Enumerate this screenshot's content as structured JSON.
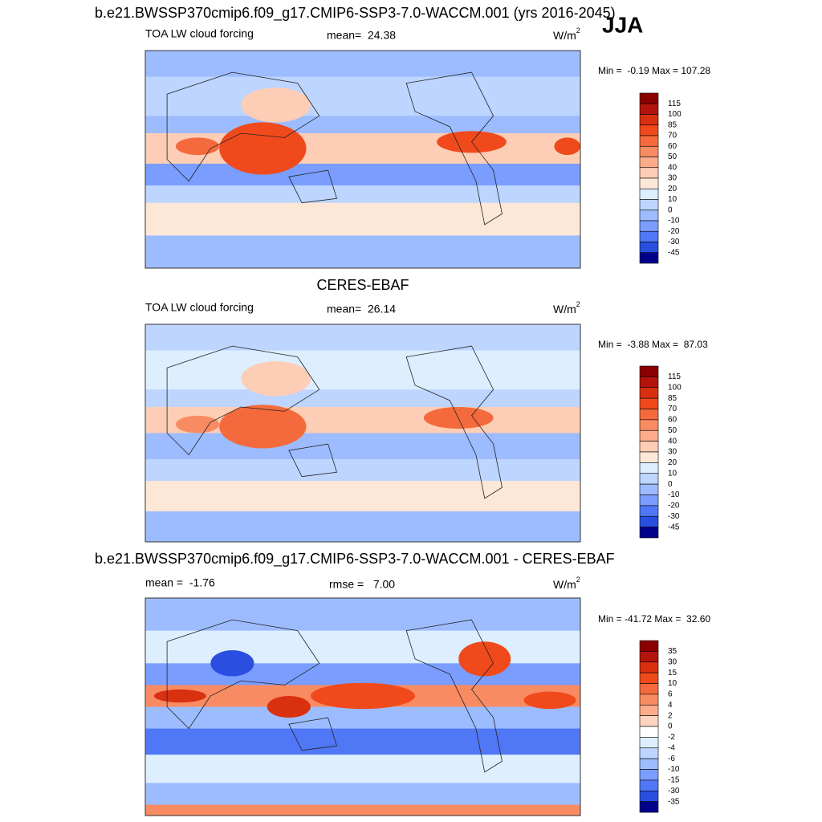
{
  "header": {
    "title": "b.e21.BWSSP370cmip6.f09_g17.CMIP6-SSP3-7.0-WACCM.001 (yrs 2016-2045)",
    "season": "JJA"
  },
  "panels": [
    {
      "left": "TOA LW cloud forcing",
      "center": "mean=  24.38",
      "units": "W/m",
      "units_power": "2",
      "range": "Min =  -0.19 Max = 107.28",
      "colorbar": {
        "labels": [
          "115",
          "100",
          "85",
          "70",
          "60",
          "50",
          "40",
          "30",
          "20",
          "10",
          "0",
          "-10",
          "-20",
          "-30",
          "-45"
        ],
        "colors": [
          "#8b0000",
          "#b3150c",
          "#d9300f",
          "#f04a1c",
          "#f56a3c",
          "#f98b62",
          "#fcac8a",
          "#fdcdb5",
          "#fde8d8",
          "#ddeeff",
          "#bdd5ff",
          "#9dbcff",
          "#7a9dff",
          "#5077f5",
          "#2a4fe0",
          "#00008b"
        ]
      }
    },
    {
      "title": "CERES-EBAF",
      "left": "TOA LW cloud forcing",
      "center": "mean=  26.14",
      "units": "W/m",
      "units_power": "2",
      "range": "Min =  -3.88 Max =  87.03",
      "colorbar": {
        "labels": [
          "115",
          "100",
          "85",
          "70",
          "60",
          "50",
          "40",
          "30",
          "20",
          "10",
          "0",
          "-10",
          "-20",
          "-30",
          "-45"
        ],
        "colors": [
          "#8b0000",
          "#b3150c",
          "#d9300f",
          "#f04a1c",
          "#f56a3c",
          "#f98b62",
          "#fcac8a",
          "#fdcdb5",
          "#fde8d8",
          "#ddeeff",
          "#bdd5ff",
          "#9dbcff",
          "#7a9dff",
          "#5077f5",
          "#2a4fe0",
          "#00008b"
        ]
      }
    },
    {
      "title": "b.e21.BWSSP370cmip6.f09_g17.CMIP6-SSP3-7.0-WACCM.001 - CERES-EBAF",
      "left": "mean =  -1.76",
      "center": "rmse =   7.00",
      "units": "W/m",
      "units_power": "2",
      "range": "Min = -41.72 Max =  32.60",
      "colorbar": {
        "labels": [
          "35",
          "30",
          "15",
          "10",
          "6",
          "4",
          "2",
          "0",
          "-2",
          "-4",
          "-6",
          "-10",
          "-15",
          "-30",
          "-35"
        ],
        "colors": [
          "#8b0000",
          "#b3150c",
          "#d9300f",
          "#f04a1c",
          "#f56a3c",
          "#f98b62",
          "#fcac8a",
          "#fdd5c0",
          "#ffffff",
          "#ddeeff",
          "#bdd5ff",
          "#9dbcff",
          "#7a9dff",
          "#5077f5",
          "#2a4fe0",
          "#00008b"
        ]
      }
    }
  ]
}
